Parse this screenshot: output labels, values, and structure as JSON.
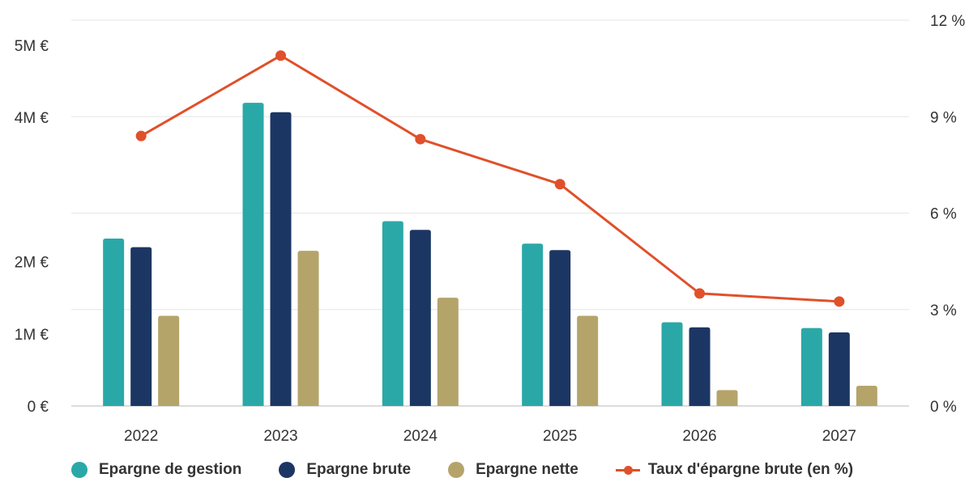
{
  "chart_data": {
    "type": "bar",
    "categories": [
      "2022",
      "2023",
      "2024",
      "2025",
      "2026",
      "2027"
    ],
    "series": [
      {
        "name": "Epargne de gestion",
        "type": "bar",
        "axis": "left",
        "color": "#2aa8a8",
        "values": [
          2.32,
          4.2,
          2.56,
          2.25,
          1.16,
          1.08
        ]
      },
      {
        "name": "Epargne brute",
        "type": "bar",
        "axis": "left",
        "color": "#1c3664",
        "values": [
          2.2,
          4.07,
          2.44,
          2.16,
          1.09,
          1.02
        ]
      },
      {
        "name": "Epargne nette",
        "type": "bar",
        "axis": "left",
        "color": "#b5a46a",
        "values": [
          1.25,
          2.15,
          1.5,
          1.25,
          0.22,
          0.28
        ]
      },
      {
        "name": "Taux d'épargne brute (en %)",
        "type": "line",
        "axis": "right",
        "color": "#e0502a",
        "values": [
          8.4,
          10.9,
          8.3,
          6.9,
          3.5,
          3.25
        ]
      }
    ],
    "y_left": {
      "ticks": [
        0,
        1,
        2,
        4,
        5
      ],
      "tick_labels": [
        "0 €",
        "1M €",
        "2M €",
        "4M €",
        "5M €"
      ]
    },
    "y_right": {
      "ylim": [
        0,
        12
      ],
      "ticks": [
        0,
        3,
        6,
        9,
        12
      ],
      "tick_labels": [
        "0 %",
        "3 %",
        "6 %",
        "9 %",
        "12 %"
      ]
    },
    "grid": true,
    "legend_position": "bottom"
  }
}
